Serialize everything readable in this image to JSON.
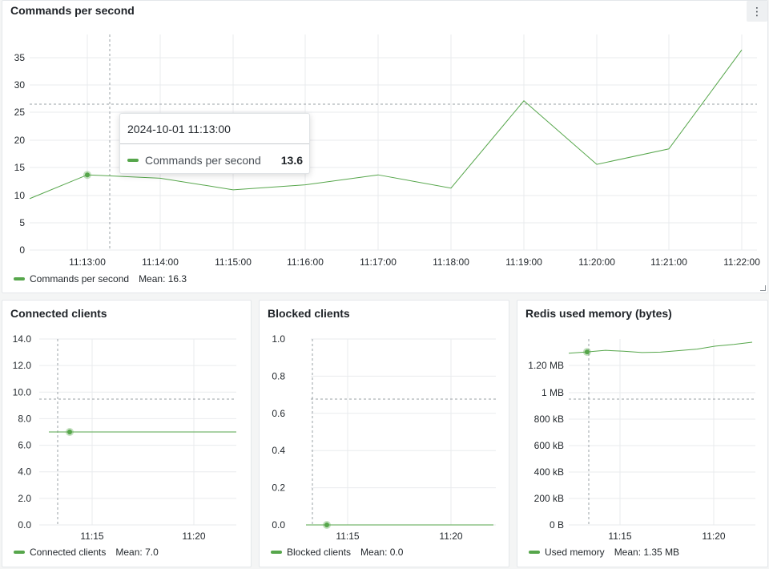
{
  "colors": {
    "series": "#56a64b",
    "grid": "#e9ebee",
    "axis_text": "#24292e",
    "crosshair": "#9aa0a6"
  },
  "panels": {
    "commands": {
      "title": "Commands per second",
      "menu_icon": "more-vertical-icon",
      "tooltip": {
        "time": "2024-10-01 11:13:00",
        "series": "Commands per second",
        "value": "13.6"
      },
      "legend": {
        "name": "Commands per second",
        "mean": "Mean: 16.3"
      }
    },
    "connected": {
      "title": "Connected clients",
      "legend": {
        "name": "Connected clients",
        "mean": "Mean: 7.0"
      }
    },
    "blocked": {
      "title": "Blocked clients",
      "legend": {
        "name": "Blocked clients",
        "mean": "Mean: 0.0"
      }
    },
    "memory": {
      "title": "Redis used memory (bytes)",
      "legend": {
        "name": "Used memory",
        "mean": "Mean: 1.35 MB"
      }
    }
  },
  "chart_data": [
    {
      "type": "line",
      "title": "Commands per second",
      "x": [
        "11:12:30",
        "11:13:00",
        "11:14:00",
        "11:15:00",
        "11:16:00",
        "11:17:00",
        "11:18:00",
        "11:19:00",
        "11:20:00",
        "11:21:00",
        "11:22:00"
      ],
      "x_ticks": [
        "11:13:00",
        "11:14:00",
        "11:15:00",
        "11:16:00",
        "11:17:00",
        "11:18:00",
        "11:19:00",
        "11:20:00",
        "11:21:00",
        "11:22:00"
      ],
      "y_ticks": [
        "0",
        "5",
        "10",
        "15",
        "20",
        "25",
        "30",
        "35"
      ],
      "ylim": [
        0,
        39
      ],
      "series": [
        {
          "name": "Commands per second",
          "values": [
            9.3,
            13.6,
            13.0,
            10.9,
            11.8,
            13.6,
            11.2,
            27.0,
            15.5,
            18.3,
            36.2
          ]
        }
      ],
      "legend_position": "bottom-left",
      "grid": true
    },
    {
      "type": "line",
      "title": "Connected clients",
      "x_ticks": [
        "11:15",
        "11:20"
      ],
      "y_ticks": [
        "0.0",
        "2.0",
        "4.0",
        "6.0",
        "8.0",
        "10.0",
        "12.0",
        "14.0"
      ],
      "ylim": [
        0,
        14
      ],
      "series": [
        {
          "name": "Connected clients",
          "values": [
            7,
            7,
            7,
            7,
            7,
            7,
            7,
            7,
            7,
            7
          ]
        }
      ],
      "legend_position": "bottom-left",
      "grid": true
    },
    {
      "type": "line",
      "title": "Blocked clients",
      "x_ticks": [
        "11:15",
        "11:20"
      ],
      "y_ticks": [
        "0.0",
        "0.2",
        "0.4",
        "0.6",
        "0.8",
        "1.0"
      ],
      "ylim": [
        0,
        1
      ],
      "series": [
        {
          "name": "Blocked clients",
          "values": [
            0,
            0,
            0,
            0,
            0,
            0,
            0,
            0,
            0,
            0
          ]
        }
      ],
      "legend_position": "bottom-left",
      "grid": true
    },
    {
      "type": "line",
      "title": "Redis used memory (bytes)",
      "x_ticks": [
        "11:15",
        "11:20"
      ],
      "y_ticks": [
        "0 B",
        "200 kB",
        "400 kB",
        "600 kB",
        "800 kB",
        "1 MB",
        "1.20 MB"
      ],
      "ylim": [
        0,
        1440
      ],
      "series": [
        {
          "name": "Used memory",
          "values": [
            1330,
            1340,
            1352,
            1345,
            1335,
            1338,
            1350,
            1362,
            1385,
            1398,
            1415
          ]
        }
      ],
      "legend_position": "bottom-left",
      "grid": true
    }
  ]
}
